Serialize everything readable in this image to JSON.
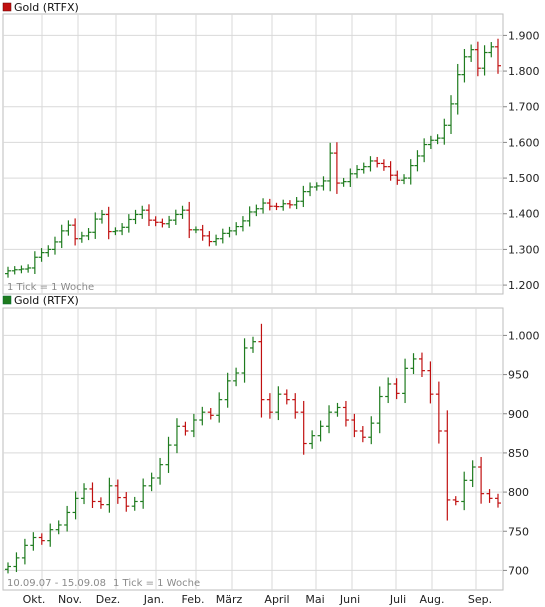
{
  "colors": {
    "up": "#1e7b1e",
    "down": "#c01010",
    "grid": "#d9d9d9",
    "frame": "#bdbdbd"
  },
  "chart_data": [
    {
      "type": "bar",
      "legend": "Gold (RTFX)",
      "legend_color": "#c01010",
      "note": "1 Tick = 1 Woche",
      "yticks": [
        1200,
        1300,
        1400,
        1500,
        1600,
        1700,
        1800,
        1900
      ],
      "yticklabels": [
        "1.200",
        "1.300",
        "1.400",
        "1.500",
        "1.600",
        "1.700",
        "1.800",
        "1.900"
      ],
      "ylim": [
        1175,
        1960
      ],
      "values": [
        1240,
        1243,
        1245,
        1248,
        1278,
        1291,
        1300,
        1321,
        1352,
        1368,
        1330,
        1338,
        1348,
        1385,
        1398,
        1350,
        1352,
        1362,
        1384,
        1398,
        1410,
        1382,
        1376,
        1372,
        1382,
        1398,
        1410,
        1355,
        1355,
        1338,
        1322,
        1330,
        1345,
        1352,
        1364,
        1380,
        1405,
        1414,
        1430,
        1421,
        1420,
        1428,
        1425,
        1435,
        1462,
        1475,
        1478,
        1492,
        1570,
        1486,
        1490,
        1512,
        1524,
        1532,
        1548,
        1541,
        1532,
        1508,
        1494,
        1500,
        1535,
        1562,
        1594,
        1606,
        1612,
        1648,
        1708,
        1790,
        1840,
        1860,
        1808,
        1852,
        1868,
        1815
      ]
    },
    {
      "type": "bar",
      "legend": "Gold (RTFX)",
      "legend_color": "#1e7b1e",
      "note_range": "10.09.07 - 15.09.08",
      "note": "1 Tick = 1 Woche",
      "yticks": [
        700,
        750,
        800,
        850,
        900,
        950,
        1000
      ],
      "yticklabels": [
        "700",
        "750",
        "800",
        "850",
        "900",
        "950",
        "1.000"
      ],
      "ylim": [
        675,
        1035
      ],
      "x_labels": [
        "Okt.",
        "Nov.",
        "Dez.",
        "Jan.",
        "Feb.",
        "März",
        "April",
        "Mai",
        "Juni",
        "Juli",
        "Aug.",
        "Sep."
      ],
      "values": [
        705,
        716,
        732,
        742,
        738,
        752,
        758,
        774,
        792,
        804,
        788,
        784,
        808,
        793,
        782,
        788,
        808,
        818,
        835,
        860,
        884,
        878,
        892,
        902,
        898,
        918,
        942,
        952,
        984,
        992,
        918,
        902,
        925,
        918,
        902,
        862,
        872,
        884,
        902,
        908,
        892,
        878,
        870,
        888,
        922,
        938,
        926,
        958,
        970,
        955,
        925,
        878,
        790,
        788,
        815,
        832,
        798,
        792,
        786
      ]
    }
  ]
}
